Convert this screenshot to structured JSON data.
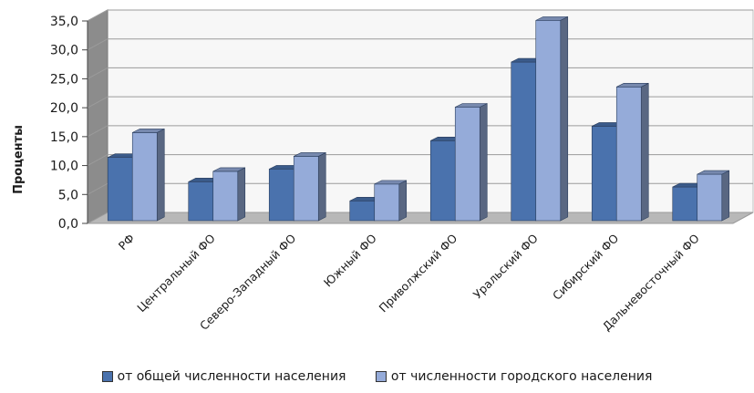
{
  "chart_data": {
    "type": "bar",
    "ylabel": "Проценты",
    "ylim": [
      0,
      35
    ],
    "yticks": [
      "0,0",
      "5,0",
      "10,0",
      "15,0",
      "20,0",
      "25,0",
      "30,0",
      "35,0"
    ],
    "grid": true,
    "legend_position": "bottom",
    "categories": [
      "РФ",
      "Центральный ФО",
      "Северо-Западный ФО",
      "Южный ФО",
      "Приволжский ФО",
      "Уральский ФО",
      "Сибирский ФО",
      "Дальневосточный ФО"
    ],
    "series": [
      {
        "name": "от общей численности населения",
        "color": "#4a72ad",
        "values": [
          11.4,
          7.2,
          9.4,
          3.9,
          14.3,
          27.9,
          16.8,
          6.3
        ]
      },
      {
        "name": "от численности городского населения",
        "color": "#95abd9",
        "values": [
          15.7,
          9.0,
          11.6,
          6.8,
          20.1,
          35.1,
          23.6,
          8.5
        ]
      }
    ]
  }
}
